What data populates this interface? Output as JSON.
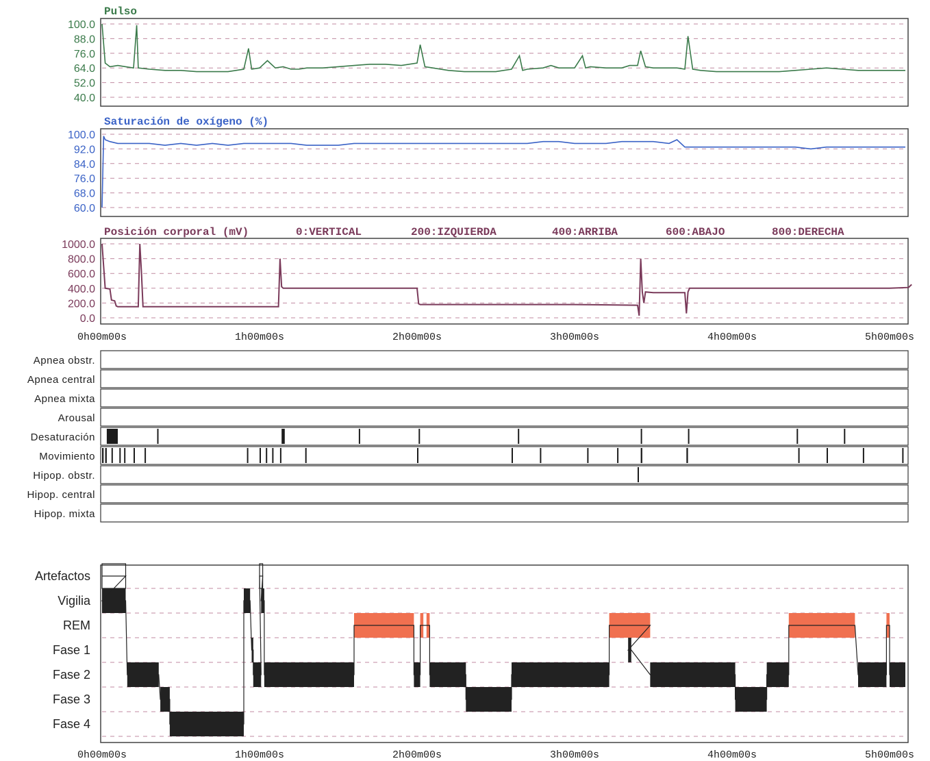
{
  "colors": {
    "pulse": "#3a7a4a",
    "spo2": "#3a62c6",
    "position": "#7a3a5a",
    "grid": "#c08aa0",
    "events": "#1c1c1c",
    "rem": "#f07050",
    "stage": "#222222",
    "frame": "#444444"
  },
  "x_axis": {
    "tick_labels": [
      "0h00m00s",
      "1h00m00s",
      "2h00m00s",
      "3h00m00s",
      "4h00m00s",
      "5h00m00s"
    ],
    "ticks_hours": [
      0,
      1,
      2,
      3,
      4,
      5
    ]
  },
  "chart_data": [
    {
      "type": "line",
      "id": "pulse",
      "title": "Pulso",
      "ylim": [
        40,
        100
      ],
      "yticks": [
        "100.0",
        "88.0",
        "76.0",
        "64.0",
        "52.0",
        "40.0"
      ],
      "ytick_values": [
        100,
        88,
        76,
        64,
        52,
        40
      ],
      "grid": true,
      "x_unit": "hours",
      "x": [
        0.0,
        0.02,
        0.05,
        0.1,
        0.15,
        0.2,
        0.22,
        0.23,
        0.3,
        0.4,
        0.5,
        0.6,
        0.7,
        0.8,
        0.85,
        0.9,
        0.93,
        0.95,
        1.0,
        1.05,
        1.1,
        1.15,
        1.2,
        1.25,
        1.3,
        1.4,
        1.5,
        1.6,
        1.7,
        1.8,
        1.9,
        2.0,
        2.02,
        2.05,
        2.1,
        2.2,
        2.3,
        2.4,
        2.5,
        2.6,
        2.65,
        2.67,
        2.7,
        2.8,
        2.85,
        2.9,
        3.0,
        3.05,
        3.07,
        3.1,
        3.2,
        3.3,
        3.35,
        3.4,
        3.42,
        3.45,
        3.5,
        3.6,
        3.65,
        3.7,
        3.72,
        3.75,
        3.8,
        3.9,
        4.0,
        4.1,
        4.2,
        4.3,
        4.4,
        4.5,
        4.6,
        4.7,
        4.8,
        4.9,
        5.0,
        5.1
      ],
      "y": [
        100,
        68,
        65,
        66,
        65,
        64,
        99,
        64,
        63,
        62,
        62,
        61,
        61,
        61,
        62,
        63,
        80,
        63,
        64,
        70,
        64,
        65,
        63,
        63,
        64,
        64,
        65,
        66,
        67,
        67,
        66,
        68,
        83,
        65,
        64,
        62,
        61,
        61,
        61,
        63,
        74,
        62,
        63,
        64,
        66,
        64,
        64,
        74,
        64,
        65,
        64,
        64,
        66,
        66,
        78,
        65,
        64,
        64,
        64,
        63,
        90,
        63,
        62,
        61,
        61,
        61,
        61,
        61,
        62,
        63,
        64,
        63,
        62,
        62,
        62,
        62
      ]
    },
    {
      "type": "line",
      "id": "spo2",
      "title": "Saturación de oxígeno (%)",
      "ylim": [
        60,
        100
      ],
      "yticks": [
        "100.0",
        "92.0",
        "84.0",
        "76.0",
        "68.0",
        "60.0"
      ],
      "ytick_values": [
        100,
        92,
        84,
        76,
        68,
        60
      ],
      "grid": true,
      "x_unit": "hours",
      "x": [
        0.0,
        0.01,
        0.02,
        0.05,
        0.1,
        0.2,
        0.3,
        0.4,
        0.5,
        0.6,
        0.7,
        0.8,
        0.9,
        1.0,
        1.1,
        1.2,
        1.3,
        1.4,
        1.5,
        1.6,
        1.7,
        1.8,
        1.9,
        2.0,
        2.1,
        2.2,
        2.3,
        2.4,
        2.5,
        2.6,
        2.7,
        2.8,
        2.9,
        3.0,
        3.1,
        3.2,
        3.3,
        3.4,
        3.5,
        3.6,
        3.65,
        3.7,
        3.8,
        3.9,
        4.0,
        4.1,
        4.2,
        4.3,
        4.4,
        4.5,
        4.6,
        4.7,
        4.8,
        4.9,
        5.0,
        5.1
      ],
      "y": [
        60,
        99,
        97,
        96,
        95,
        95,
        95,
        94,
        95,
        94,
        95,
        94,
        95,
        95,
        95,
        95,
        94,
        94,
        94,
        95,
        95,
        95,
        95,
        95,
        95,
        95,
        95,
        95,
        95,
        95,
        95,
        96,
        96,
        95,
        95,
        95,
        96,
        96,
        96,
        95,
        97,
        93,
        93,
        93,
        93,
        93,
        93,
        93,
        93,
        92,
        93,
        93,
        93,
        93,
        93,
        93
      ]
    },
    {
      "type": "line",
      "id": "position",
      "title": "Posición corporal (mV)",
      "legend": [
        "0:VERTICAL",
        "200:IZQUIERDA",
        "400:ARRIBA",
        "600:ABAJO",
        "800:DERECHA"
      ],
      "ylim": [
        0,
        1000
      ],
      "yticks": [
        "1000.0",
        "800.0",
        "600.0",
        "400.0",
        "200.0",
        "0.0"
      ],
      "ytick_values": [
        1000,
        800,
        600,
        400,
        200,
        0
      ],
      "grid": true,
      "x_unit": "hours",
      "x": [
        0.0,
        0.01,
        0.02,
        0.05,
        0.06,
        0.08,
        0.09,
        0.1,
        0.23,
        0.24,
        0.25,
        0.26,
        0.5,
        1.0,
        1.12,
        1.13,
        1.14,
        1.15,
        1.5,
        2.0,
        2.01,
        2.02,
        2.5,
        3.0,
        3.4,
        3.41,
        3.42,
        3.43,
        3.44,
        3.45,
        3.5,
        3.6,
        3.7,
        3.71,
        3.72,
        3.73,
        3.8,
        4.0,
        4.5,
        5.0,
        5.12,
        5.14
      ],
      "y": [
        1000,
        700,
        400,
        390,
        240,
        230,
        160,
        150,
        150,
        1000,
        620,
        150,
        150,
        150,
        150,
        800,
        420,
        400,
        400,
        400,
        190,
        180,
        180,
        180,
        170,
        30,
        800,
        350,
        200,
        350,
        340,
        340,
        340,
        60,
        350,
        400,
        400,
        400,
        400,
        400,
        410,
        450
      ]
    },
    {
      "type": "event-tracks",
      "id": "events",
      "x_unit": "hours",
      "tracks": [
        {
          "label": "Apnea obstr.",
          "events": []
        },
        {
          "label": "Apnea central",
          "events": []
        },
        {
          "label": "Apnea mixta",
          "events": []
        },
        {
          "label": "Arousal",
          "events": []
        },
        {
          "label": "Desaturación",
          "events": [
            [
              0.03,
              0.1
            ],
            [
              0.35,
              0.355
            ],
            [
              1.14,
              1.16
            ],
            [
              1.63,
              1.635
            ],
            [
              2.01,
              2.015
            ],
            [
              2.64,
              2.645
            ],
            [
              3.42,
              3.425
            ],
            [
              3.72,
              3.725
            ],
            [
              4.41,
              4.415
            ],
            [
              4.71,
              4.715
            ]
          ]
        },
        {
          "label": "Movimiento",
          "events": [
            [
              0.0,
              0.01
            ],
            [
              0.02,
              0.03
            ],
            [
              0.06,
              0.065
            ],
            [
              0.11,
              0.115
            ],
            [
              0.14,
              0.145
            ],
            [
              0.2,
              0.205
            ],
            [
              0.27,
              0.275
            ],
            [
              0.92,
              0.925
            ],
            [
              1.0,
              1.005
            ],
            [
              1.04,
              1.045
            ],
            [
              1.08,
              1.085
            ],
            [
              1.13,
              1.135
            ],
            [
              1.29,
              1.295
            ],
            [
              2.0,
              2.005
            ],
            [
              2.6,
              2.605
            ],
            [
              2.78,
              2.785
            ],
            [
              3.08,
              3.085
            ],
            [
              3.27,
              3.275
            ],
            [
              3.42,
              3.43
            ],
            [
              3.71,
              3.72
            ],
            [
              4.42,
              4.425
            ],
            [
              4.6,
              4.605
            ],
            [
              4.83,
              4.835
            ],
            [
              5.08,
              5.085
            ]
          ]
        },
        {
          "label": "Hipop. obstr.",
          "events": [
            [
              3.4,
              3.405
            ]
          ]
        },
        {
          "label": "Hipop. central",
          "events": []
        },
        {
          "label": "Hipop. mixta",
          "events": []
        }
      ]
    },
    {
      "type": "hypnogram",
      "id": "hypnogram",
      "stages": [
        "Artefactos",
        "Vigilia",
        "REM",
        "Fase 1",
        "Fase 2",
        "Fase 3",
        "Fase 4"
      ],
      "x_unit": "hours",
      "segments": [
        {
          "stage": "Artefactos",
          "start": 0.0,
          "end": 0.15
        },
        {
          "stage": "Vigilia",
          "start": 0.0,
          "end": 0.15
        },
        {
          "stage": "Fase 2",
          "start": 0.16,
          "end": 0.36
        },
        {
          "stage": "Fase 3",
          "start": 0.37,
          "end": 0.43
        },
        {
          "stage": "Fase 4",
          "start": 0.43,
          "end": 0.9
        },
        {
          "stage": "Vigilia",
          "start": 0.9,
          "end": 0.94
        },
        {
          "stage": "Fase 1",
          "start": 0.95,
          "end": 0.96
        },
        {
          "stage": "Fase 2",
          "start": 0.96,
          "end": 1.01
        },
        {
          "stage": "Artefactos",
          "start": 1.0,
          "end": 1.02
        },
        {
          "stage": "Vigilia",
          "start": 1.01,
          "end": 1.03
        },
        {
          "stage": "Fase 2",
          "start": 1.03,
          "end": 1.6
        },
        {
          "stage": "REM",
          "start": 1.6,
          "end": 1.98
        },
        {
          "stage": "Fase 2",
          "start": 1.98,
          "end": 2.02
        },
        {
          "stage": "REM",
          "start": 2.02,
          "end": 2.04
        },
        {
          "stage": "REM",
          "start": 2.06,
          "end": 2.08
        },
        {
          "stage": "Fase 2",
          "start": 2.08,
          "end": 2.31
        },
        {
          "stage": "Fase 3",
          "start": 2.31,
          "end": 2.6
        },
        {
          "stage": "Fase 2",
          "start": 2.6,
          "end": 3.22
        },
        {
          "stage": "REM",
          "start": 3.22,
          "end": 3.48
        },
        {
          "stage": "Fase 1",
          "start": 3.34,
          "end": 3.36
        },
        {
          "stage": "Fase 2",
          "start": 3.48,
          "end": 4.02
        },
        {
          "stage": "Fase 3",
          "start": 4.02,
          "end": 4.22
        },
        {
          "stage": "Fase 2",
          "start": 4.22,
          "end": 4.36
        },
        {
          "stage": "REM",
          "start": 4.36,
          "end": 4.78
        },
        {
          "stage": "Fase 2",
          "start": 4.8,
          "end": 4.98
        },
        {
          "stage": "REM",
          "start": 4.98,
          "end": 5.0
        },
        {
          "stage": "Fase 2",
          "start": 5.0,
          "end": 5.1
        }
      ]
    }
  ]
}
